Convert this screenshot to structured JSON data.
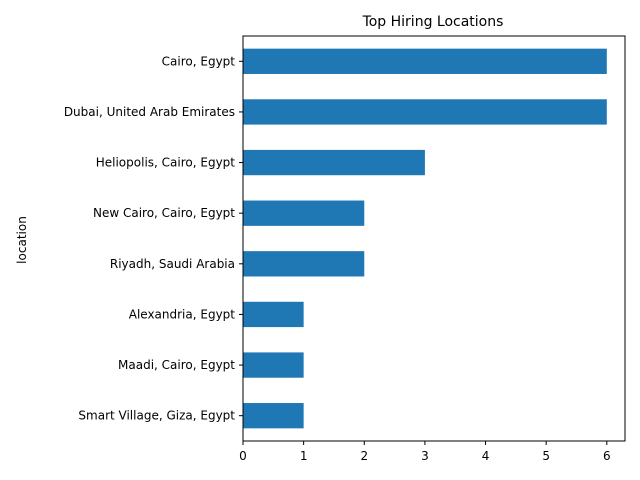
{
  "chart_data": {
    "type": "bar",
    "orientation": "horizontal",
    "title": "Top Hiring Locations",
    "xlabel": "",
    "ylabel": "location",
    "categories": [
      "Cairo, Egypt",
      "Dubai, United Arab Emirates",
      "Heliopolis, Cairo, Egypt",
      "New Cairo, Cairo, Egypt",
      "Riyadh, Saudi Arabia",
      "Alexandria, Egypt",
      "Maadi, Cairo, Egypt",
      "Smart Village, Giza, Egypt"
    ],
    "values": [
      6,
      6,
      3,
      2,
      2,
      1,
      1,
      1
    ],
    "xlim": [
      0,
      6.3
    ],
    "xticks": [
      0,
      1,
      2,
      3,
      4,
      5,
      6
    ],
    "bar_color": "#1f77b4",
    "grid": false,
    "legend": false
  }
}
